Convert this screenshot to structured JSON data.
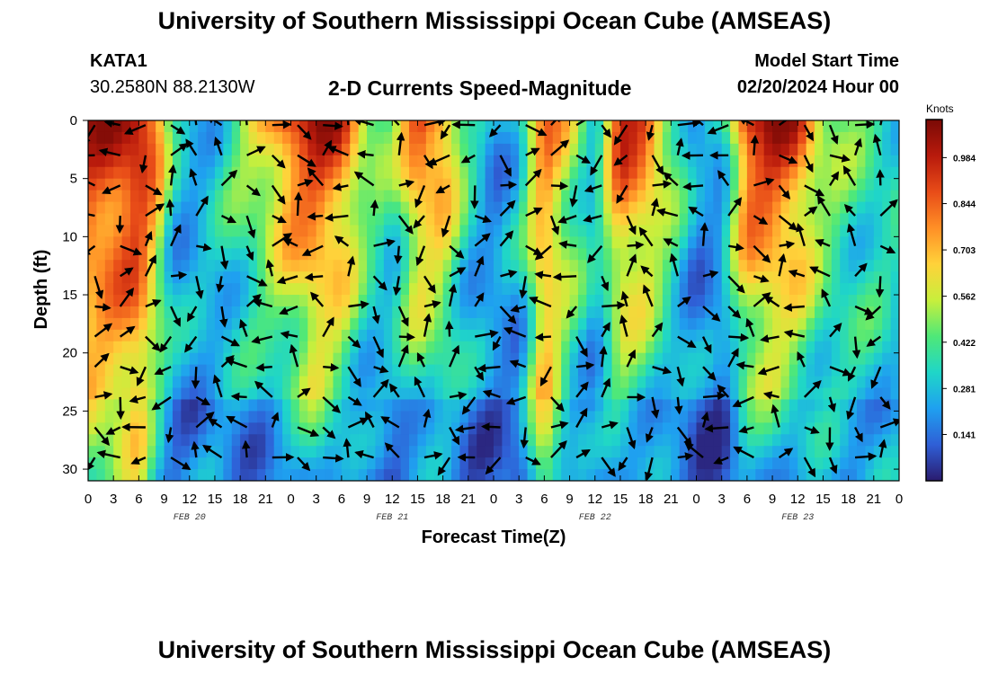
{
  "page": {
    "title_top": "University of Southern Mississippi Ocean Cube (AMSEAS)",
    "title_bottom": "University of Southern Mississippi Ocean Cube (AMSEAS)",
    "station": "KATA1",
    "coords": "30.2580N  88.2130W",
    "model_start_label": "Model Start Time",
    "model_start_value": "02/20/2024 Hour 00"
  },
  "chart_data": {
    "type": "heatmap",
    "title": "2-D Currents Speed-Magnitude",
    "xlabel": "Forecast Time(Z)",
    "ylabel": "Depth (ft)",
    "x_tick_labels": [
      "0",
      "3",
      "6",
      "9",
      "12",
      "15",
      "18",
      "21",
      "0",
      "3",
      "6",
      "9",
      "12",
      "15",
      "18",
      "21",
      "0",
      "3",
      "6",
      "9",
      "12",
      "15",
      "18",
      "21",
      "0",
      "3",
      "6",
      "9",
      "12",
      "15",
      "18",
      "21",
      "0"
    ],
    "x_range_hours": [
      0,
      96
    ],
    "date_labels": [
      {
        "hour": 12,
        "label": "FEB 20"
      },
      {
        "hour": 36,
        "label": "FEB 21"
      },
      {
        "hour": 60,
        "label": "FEB 22"
      },
      {
        "hour": 84,
        "label": "FEB 23"
      }
    ],
    "y_ticks": [
      0,
      5,
      10,
      15,
      20,
      25,
      30
    ],
    "y_range_ft": [
      0,
      31
    ],
    "y_inverted": true,
    "colorbar": {
      "title": "Knots",
      "tick_labels": [
        "0.984",
        "0.844",
        "0.703",
        "0.562",
        "0.422",
        "0.281",
        "0.141"
      ],
      "tick_values": [
        0.984,
        0.844,
        0.703,
        0.562,
        0.422,
        0.281,
        0.141
      ],
      "range": [
        0,
        1.1
      ],
      "colormap": [
        "#2a1b6e",
        "#2f5fd6",
        "#1fa0f0",
        "#1fd6c8",
        "#4fe878",
        "#c8ef3c",
        "#ffd23a",
        "#ff8f26",
        "#e84c18",
        "#b81a0c",
        "#7a0a06"
      ]
    },
    "grid": false,
    "vectors_shown": true
  }
}
